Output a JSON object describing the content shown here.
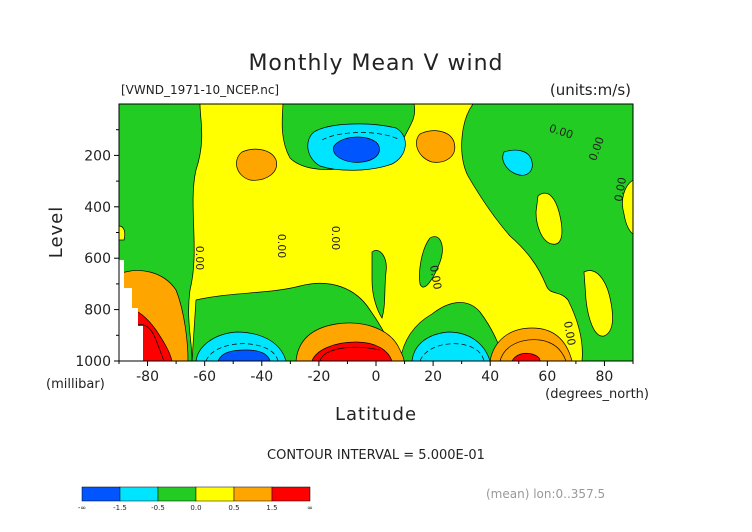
{
  "chart_data": {
    "type": "contour",
    "title": "Monthly Mean V wind",
    "file_label": "[VWND_1971-10_NCEP.nc]",
    "units_label": "(units:m/s)",
    "xlabel": "Latitude",
    "xunits": "(degrees_north)",
    "ylabel": "Level",
    "yunits": "(millibar)",
    "xlim": [
      -90,
      90
    ],
    "ylim": [
      1000,
      0
    ],
    "x_ticks": [
      "-80",
      "-60",
      "-40",
      "-20",
      "0",
      "20",
      "40",
      "60",
      "80"
    ],
    "x_tick_values": [
      -80,
      -60,
      -40,
      -20,
      0,
      20,
      40,
      60,
      80
    ],
    "y_ticks": [
      "200",
      "400",
      "600",
      "800",
      "1000"
    ],
    "y_tick_values": [
      200,
      400,
      600,
      800,
      1000
    ],
    "contour_interval_text": "CONTOUR INTERVAL = 5.000E-01",
    "contour_labels": [
      "0.00",
      "0.00",
      "0.00",
      "0.00",
      "0.00",
      "0.00",
      "0.00",
      "0.00"
    ],
    "mean_text": "(mean) lon:0..357.5",
    "colorbar": {
      "labels": [
        "-∞",
        "-1.5",
        "-0.5",
        "0.0",
        "0.5",
        "1.5",
        "∞"
      ],
      "colors": [
        "#0055ff",
        "#00e5ff",
        "#22cc22",
        "#ffff00",
        "#ffa500",
        "#ff0000"
      ]
    }
  }
}
